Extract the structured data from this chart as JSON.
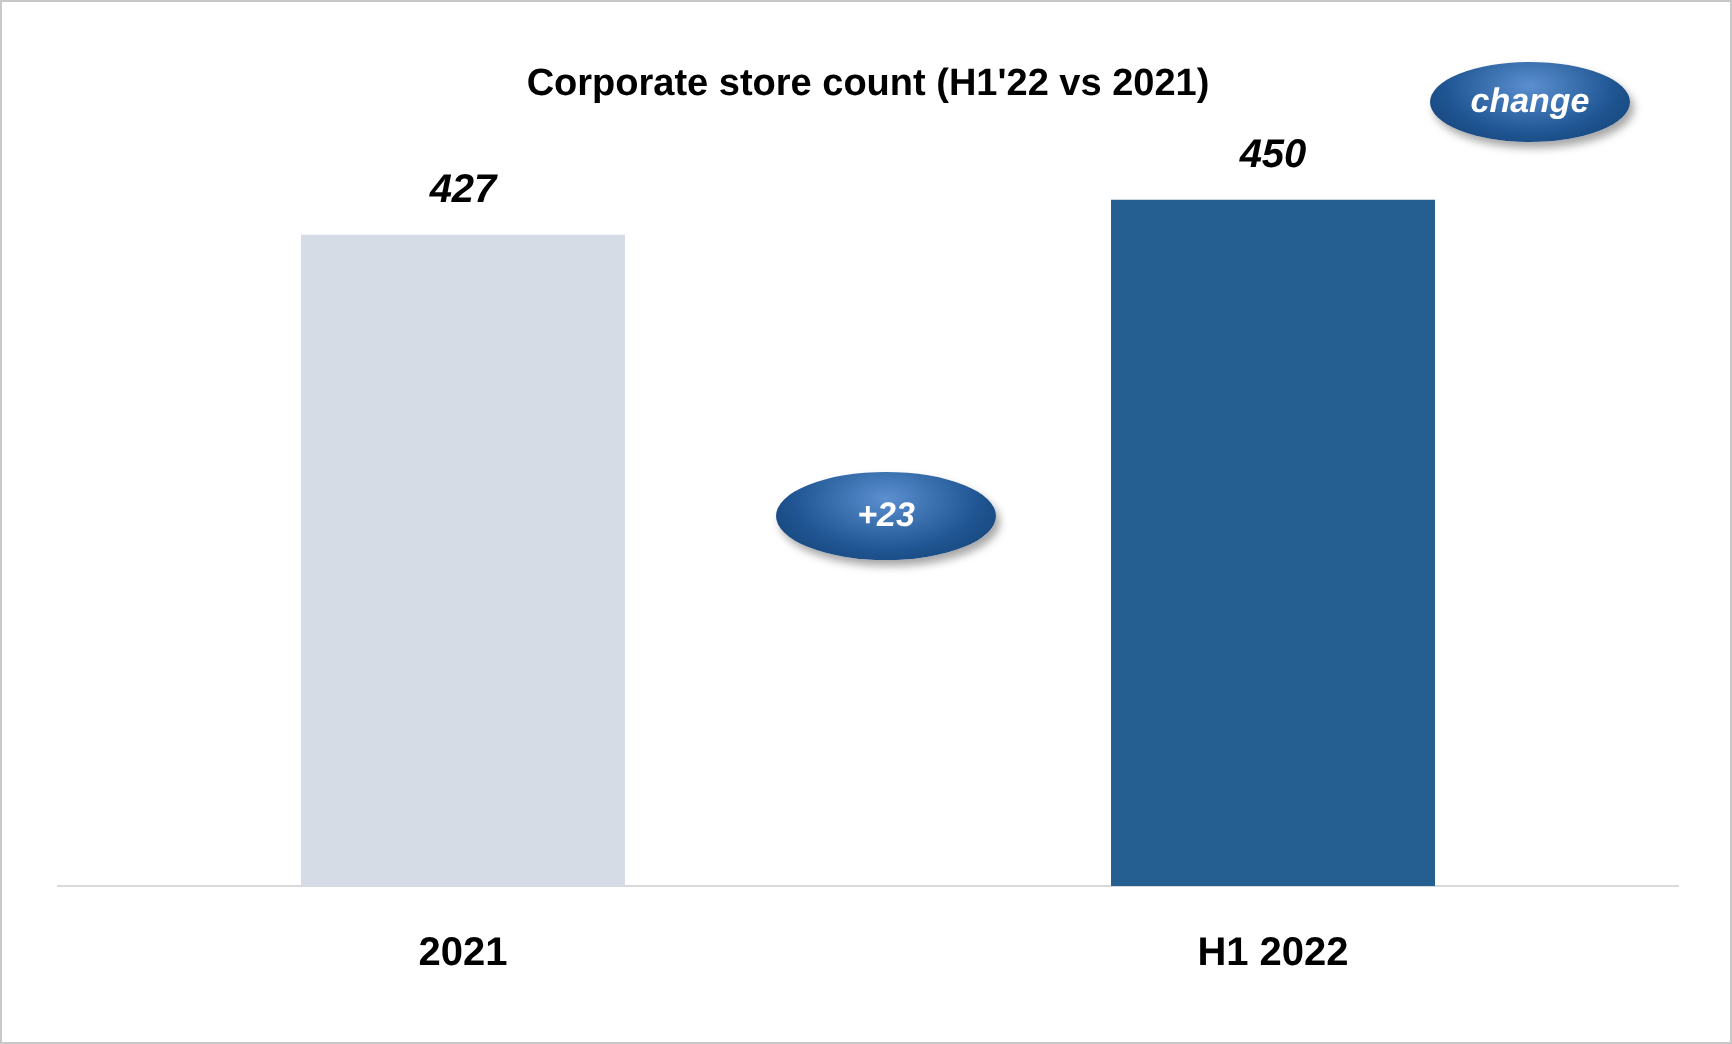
{
  "chart_data": {
    "type": "bar",
    "title": "Corporate store count (H1'22 vs 2021)",
    "categories": [
      "2021",
      "H1 2022"
    ],
    "values": [
      427,
      450
    ],
    "colors": [
      "#d6dce5",
      "#255e91"
    ],
    "tick_labels": "x",
    "grid": false,
    "legend": false,
    "data_labels": true,
    "annotations": [
      "change",
      "+23"
    ]
  }
}
